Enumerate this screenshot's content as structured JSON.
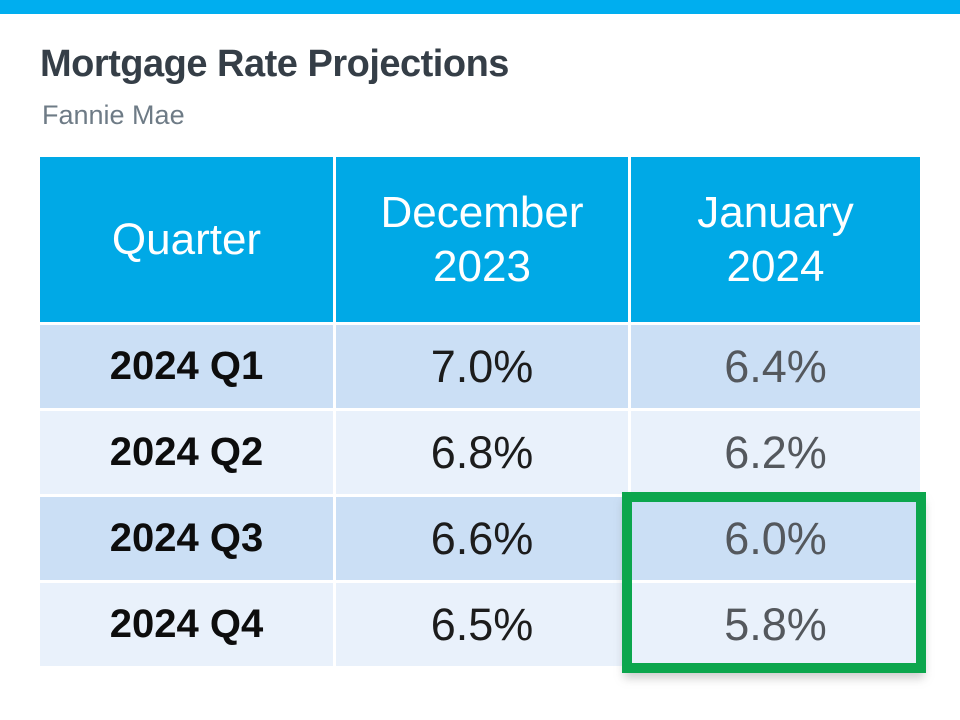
{
  "page": {
    "title": "Mortgage Rate Projections",
    "subtitle": "Fannie Mae"
  },
  "table": {
    "columns": [
      {
        "label": "Quarter"
      },
      {
        "label": "December\n2023"
      },
      {
        "label": "January\n2024"
      }
    ],
    "rows": [
      {
        "quarter": "2024 Q1",
        "dec_2023": "7.0%",
        "jan_2024": "6.4%"
      },
      {
        "quarter": "2024 Q2",
        "dec_2023": "6.8%",
        "jan_2024": "6.2%"
      },
      {
        "quarter": "2024 Q3",
        "dec_2023": "6.6%",
        "jan_2024": "6.0%"
      },
      {
        "quarter": "2024 Q4",
        "dec_2023": "6.5%",
        "jan_2024": "5.8%"
      }
    ]
  },
  "highlight": {
    "description": "Green rectangle around January 2024 projections for 2024 Q3 and 2024 Q4",
    "highlighted_values": [
      "6.0%",
      "5.8%"
    ]
  },
  "colors": {
    "top_bar": "#00AEEF",
    "header_bg": "#00A9E6",
    "row_odd_bg": "#CBDFF5",
    "row_even_bg": "#E9F1FB",
    "title_text": "#353E47",
    "subtitle_text": "#6E7B86",
    "highlight_border": "#0CA64D"
  },
  "chart_data": {
    "type": "table",
    "title": "Mortgage Rate Projections",
    "subtitle": "Fannie Mae",
    "categories": [
      "2024 Q1",
      "2024 Q2",
      "2024 Q3",
      "2024 Q4"
    ],
    "series": [
      {
        "name": "December 2023",
        "values": [
          7.0,
          6.8,
          6.6,
          6.5
        ]
      },
      {
        "name": "January 2024",
        "values": [
          6.4,
          6.2,
          6.0,
          5.8
        ]
      }
    ],
    "unit": "%",
    "annotation": "January 2024 values for 2024 Q3 (6.0%) and 2024 Q4 (5.8%) are outlined in green"
  }
}
